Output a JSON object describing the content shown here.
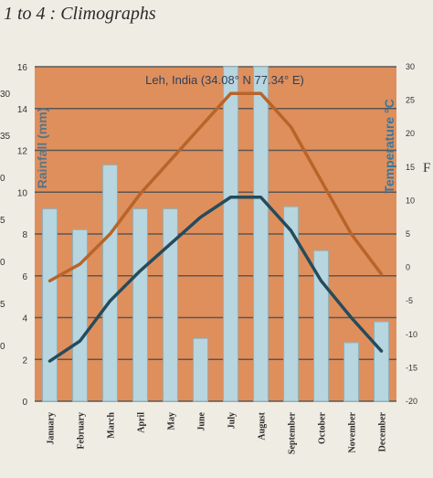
{
  "page": {
    "heading": "1 to 4 : Climographs",
    "stray_letter": "F"
  },
  "colors": {
    "page_bg": "#efece4",
    "plot_bg": "#df8f5c",
    "grid": "#5c5652",
    "bar_fill": "#b8d6df",
    "bar_stroke": "#8fb4c0",
    "max_temp_line": "#b8642a",
    "min_temp_line": "#254b5c"
  },
  "chart_data": {
    "type": "bar",
    "title": "Leh, India (34.08° N 77.34° E)",
    "ylabel": "Rainfall (mm)",
    "ylabel_right": "Temperature °C",
    "categories": [
      "January",
      "February",
      "March",
      "April",
      "May",
      "June",
      "July",
      "August",
      "September",
      "October",
      "November",
      "December"
    ],
    "ylim": [
      0,
      16
    ],
    "yticks": [
      0,
      2,
      4,
      6,
      8,
      10,
      12,
      14,
      16
    ],
    "ylim_right": [
      -20,
      30
    ],
    "yticks_right": [
      -20,
      -15,
      -10,
      -5,
      0,
      5,
      10,
      15,
      20,
      25,
      30
    ],
    "grid": true,
    "series": [
      {
        "kind": "bar",
        "axis": "left",
        "values": [
          9.2,
          8.2,
          11.3,
          9.2,
          9.2,
          3.0,
          16.0,
          16.0,
          9.3,
          7.2,
          2.8,
          3.8
        ]
      },
      {
        "kind": "line",
        "axis": "right",
        "values": [
          -2.0,
          0.5,
          5.0,
          11.0,
          16.0,
          21.0,
          26.0,
          26.0,
          21.0,
          13.0,
          5.0,
          -1.0
        ]
      },
      {
        "kind": "line",
        "axis": "right",
        "values": [
          -14.0,
          -11.0,
          -5.0,
          -0.5,
          3.5,
          7.5,
          10.5,
          10.5,
          5.5,
          -2.0,
          -7.5,
          -12.5
        ]
      }
    ],
    "cropped_left_tick_labels": [
      "30",
      "35",
      "0",
      "5",
      "0",
      "5",
      "0"
    ]
  }
}
